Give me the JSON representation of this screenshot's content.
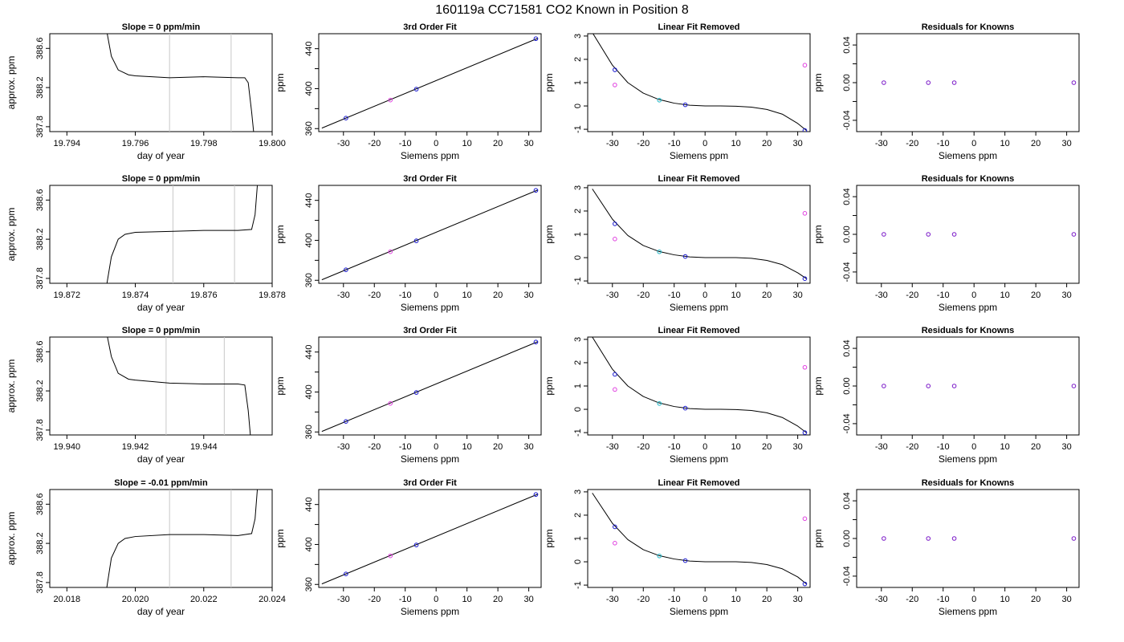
{
  "page_title": "160119a     CC71581    CO2 Known in Position  8",
  "colors": {
    "axis": "#000000",
    "curve": "#000000",
    "vline": "#c8c8c8",
    "point_blue": "#1515d0",
    "point_magenta": "#e040e0",
    "point_cyan": "#20b8c8",
    "point_purple": "#7a18c8"
  },
  "chart_data": [
    {
      "type": "line",
      "title": "Slope =  0  ppm/min",
      "xlabel": "day of year",
      "ylabel": "approx. ppm",
      "xlim": [
        19.7935,
        19.8
      ],
      "ylim": [
        387.75,
        388.75
      ],
      "xticks": [
        "19.794",
        "19.796",
        "19.798",
        "19.800"
      ],
      "xtick_values": [
        19.794,
        19.796,
        19.798,
        19.8
      ],
      "yticks": [
        "387.8",
        "388.2",
        "388.6"
      ],
      "ytick_values": [
        387.8,
        388.2,
        388.6
      ],
      "vlines": [
        19.797,
        19.7988
      ],
      "x": [
        19.7951,
        19.7953,
        19.7955,
        19.7958,
        19.796,
        19.797,
        19.798,
        19.799,
        19.7992,
        19.7993,
        19.7994,
        19.7995
      ],
      "y": [
        388.9,
        388.52,
        388.38,
        388.33,
        388.32,
        388.3,
        388.31,
        388.3,
        388.3,
        388.25,
        387.95,
        387.6
      ]
    },
    {
      "type": "line",
      "title": "Slope =  0  ppm/min",
      "xlabel": "day of year",
      "ylabel": "approx. ppm",
      "xlim": [
        19.8715,
        19.878
      ],
      "ylim": [
        387.75,
        388.75
      ],
      "xticks": [
        "19.872",
        "19.874",
        "19.876",
        "19.878"
      ],
      "xtick_values": [
        19.872,
        19.874,
        19.876,
        19.878
      ],
      "yticks": [
        "387.8",
        "388.2",
        "388.6"
      ],
      "ytick_values": [
        387.8,
        388.2,
        388.6
      ],
      "vlines": [
        19.8751,
        19.8769
      ],
      "x": [
        19.8731,
        19.8733,
        19.8735,
        19.8737,
        19.874,
        19.875,
        19.876,
        19.877,
        19.8774,
        19.8775,
        19.8776
      ],
      "y": [
        387.6,
        388.02,
        388.2,
        388.25,
        388.27,
        388.28,
        388.29,
        388.29,
        388.3,
        388.45,
        388.9
      ]
    },
    {
      "type": "line",
      "title": "Slope =  0  ppm/min",
      "xlabel": "day of year",
      "ylabel": "approx. ppm",
      "xlim": [
        19.9395,
        19.946
      ],
      "ylim": [
        387.75,
        388.75
      ],
      "xticks": [
        "19.940",
        "19.942",
        "19.944"
      ],
      "xtick_values": [
        19.94,
        19.942,
        19.944
      ],
      "yticks": [
        "387.8",
        "388.2",
        "388.6"
      ],
      "ytick_values": [
        387.8,
        388.2,
        388.6
      ],
      "vlines": [
        19.9429,
        19.9446
      ],
      "x": [
        19.9411,
        19.9413,
        19.9415,
        19.9418,
        19.942,
        19.943,
        19.944,
        19.945,
        19.9452,
        19.9453,
        19.9454
      ],
      "y": [
        388.9,
        388.55,
        388.38,
        388.32,
        388.31,
        388.28,
        388.27,
        388.27,
        388.26,
        388.0,
        387.6
      ]
    },
    {
      "type": "line",
      "title": "Slope =  -0.01  ppm/min",
      "xlabel": "day of year",
      "ylabel": "approx. ppm",
      "xlim": [
        20.0175,
        20.024
      ],
      "ylim": [
        387.75,
        388.75
      ],
      "xticks": [
        "20.018",
        "20.020",
        "20.022",
        "20.024"
      ],
      "xtick_values": [
        20.018,
        20.02,
        20.022,
        20.024
      ],
      "yticks": [
        "387.8",
        "388.2",
        "388.6"
      ],
      "ytick_values": [
        387.8,
        388.2,
        388.6
      ],
      "vlines": [
        20.021,
        20.0228
      ],
      "x": [
        20.0191,
        20.0193,
        20.0195,
        20.0197,
        20.02,
        20.021,
        20.022,
        20.023,
        20.0234,
        20.0235,
        20.0236
      ],
      "y": [
        387.6,
        388.05,
        388.2,
        388.25,
        388.27,
        388.29,
        388.29,
        388.28,
        388.3,
        388.45,
        388.9
      ]
    },
    {
      "type": "scatter",
      "title": "3rd Order Fit",
      "xlabel": "Siemens ppm",
      "ylabel": "ppm",
      "xlim": [
        -38,
        34
      ],
      "ylim": [
        357,
        455
      ],
      "xticks": [
        "-30",
        "-20",
        "-10",
        "0",
        "10",
        "20",
        "30"
      ],
      "xtick_values": [
        -30,
        -20,
        -10,
        0,
        10,
        20,
        30
      ],
      "yticks": [
        "360",
        "400",
        "440"
      ],
      "ytick_values": [
        360,
        400,
        440
      ],
      "minor_yticks": [
        380,
        420
      ],
      "line_x": [
        -37,
        33
      ],
      "line_y": [
        360.5,
        450.5
      ],
      "series": [
        {
          "color": "blue",
          "x": [
            -29.2,
            -6.4,
            32.3
          ],
          "y": [
            370.5,
            399.5,
            450
          ]
        },
        {
          "color": "magenta",
          "x": [
            -14.8
          ],
          "y": [
            388.6
          ]
        }
      ]
    },
    {
      "type": "scatter",
      "title": "3rd Order Fit",
      "xlabel": "Siemens ppm",
      "ylabel": "ppm",
      "xlim": [
        -38,
        34
      ],
      "ylim": [
        357,
        455
      ],
      "xticks": [
        "-30",
        "-20",
        "-10",
        "0",
        "10",
        "20",
        "30"
      ],
      "xtick_values": [
        -30,
        -20,
        -10,
        0,
        10,
        20,
        30
      ],
      "yticks": [
        "360",
        "400",
        "440"
      ],
      "ytick_values": [
        360,
        400,
        440
      ],
      "minor_yticks": [
        380,
        420
      ],
      "line_x": [
        -37,
        33
      ],
      "line_y": [
        360.5,
        450.5
      ],
      "series": [
        {
          "color": "blue",
          "x": [
            -29.2,
            -6.4,
            32.3
          ],
          "y": [
            370.5,
            399.5,
            450
          ]
        },
        {
          "color": "magenta",
          "x": [
            -14.8
          ],
          "y": [
            388.6
          ]
        }
      ]
    },
    {
      "type": "scatter",
      "title": "3rd Order Fit",
      "xlabel": "Siemens ppm",
      "ylabel": "ppm",
      "xlim": [
        -38,
        34
      ],
      "ylim": [
        357,
        455
      ],
      "xticks": [
        "-30",
        "-20",
        "-10",
        "0",
        "10",
        "20",
        "30"
      ],
      "xtick_values": [
        -30,
        -20,
        -10,
        0,
        10,
        20,
        30
      ],
      "yticks": [
        "360",
        "400",
        "440"
      ],
      "ytick_values": [
        360,
        400,
        440
      ],
      "minor_yticks": [
        380,
        420
      ],
      "line_x": [
        -37,
        33
      ],
      "line_y": [
        360.5,
        450.5
      ],
      "series": [
        {
          "color": "blue",
          "x": [
            -29.2,
            -6.4,
            32.3
          ],
          "y": [
            370.5,
            399.5,
            450
          ]
        },
        {
          "color": "magenta",
          "x": [
            -14.8
          ],
          "y": [
            388.6
          ]
        }
      ]
    },
    {
      "type": "scatter",
      "title": "3rd Order Fit",
      "xlabel": "Siemens ppm",
      "ylabel": "ppm",
      "xlim": [
        -38,
        34
      ],
      "ylim": [
        357,
        455
      ],
      "xticks": [
        "-30",
        "-20",
        "-10",
        "0",
        "10",
        "20",
        "30"
      ],
      "xtick_values": [
        -30,
        -20,
        -10,
        0,
        10,
        20,
        30
      ],
      "yticks": [
        "360",
        "400",
        "440"
      ],
      "ytick_values": [
        360,
        400,
        440
      ],
      "minor_yticks": [
        380,
        420
      ],
      "line_x": [
        -37,
        33
      ],
      "line_y": [
        360.5,
        450.5
      ],
      "series": [
        {
          "color": "blue",
          "x": [
            -29.2,
            -6.4,
            32.3
          ],
          "y": [
            370.5,
            399.5,
            450
          ]
        },
        {
          "color": "magenta",
          "x": [
            -14.8
          ],
          "y": [
            388.6
          ]
        }
      ]
    },
    {
      "type": "scatter",
      "title": "Linear Fit Removed",
      "xlabel": "Siemens ppm",
      "ylabel": "ppm",
      "xlim": [
        -38,
        34
      ],
      "ylim": [
        -1.1,
        3.1
      ],
      "xticks": [
        "-30",
        "-20",
        "-10",
        "0",
        "10",
        "20",
        "30"
      ],
      "xtick_values": [
        -30,
        -20,
        -10,
        0,
        10,
        20,
        30
      ],
      "yticks": [
        "-1",
        "0",
        "1",
        "2",
        "3"
      ],
      "ytick_values": [
        -1,
        0,
        1,
        2,
        3
      ],
      "curve_x": [
        -36.5,
        -30,
        -25,
        -20,
        -15,
        -10,
        -5,
        0,
        5,
        10,
        15,
        20,
        25,
        30,
        32.8
      ],
      "curve_y": [
        3.15,
        1.75,
        1.0,
        0.55,
        0.28,
        0.12,
        0.03,
        0,
        0,
        -0.01,
        -0.05,
        -0.15,
        -0.35,
        -0.75,
        -1.05
      ],
      "series": [
        {
          "color": "blue",
          "x": [
            -29.2,
            -6.4,
            32.3
          ],
          "y": [
            1.55,
            0.05,
            -1.05
          ]
        },
        {
          "color": "cyan",
          "x": [
            -14.8
          ],
          "y": [
            0.25
          ]
        },
        {
          "color": "magenta",
          "x": [
            -29.2,
            32.3
          ],
          "y": [
            0.9,
            1.75
          ]
        }
      ]
    },
    {
      "type": "scatter",
      "title": "Linear Fit Removed",
      "xlabel": "Siemens ppm",
      "ylabel": "ppm",
      "xlim": [
        -38,
        34
      ],
      "ylim": [
        -1.1,
        3.1
      ],
      "xticks": [
        "-30",
        "-20",
        "-10",
        "0",
        "10",
        "20",
        "30"
      ],
      "xtick_values": [
        -30,
        -20,
        -10,
        0,
        10,
        20,
        30
      ],
      "yticks": [
        "-1",
        "0",
        "1",
        "2",
        "3"
      ],
      "ytick_values": [
        -1,
        0,
        1,
        2,
        3
      ],
      "curve_x": [
        -36.5,
        -30,
        -25,
        -20,
        -15,
        -10,
        -5,
        0,
        5,
        10,
        15,
        20,
        25,
        30,
        32.8
      ],
      "curve_y": [
        2.95,
        1.65,
        0.95,
        0.52,
        0.27,
        0.12,
        0.03,
        0,
        0,
        0,
        -0.03,
        -0.12,
        -0.3,
        -0.65,
        -0.9
      ],
      "series": [
        {
          "color": "blue",
          "x": [
            -29.2,
            -6.4,
            32.3
          ],
          "y": [
            1.45,
            0.05,
            -0.9
          ]
        },
        {
          "color": "cyan",
          "x": [
            -14.8
          ],
          "y": [
            0.25
          ]
        },
        {
          "color": "magenta",
          "x": [
            -29.2,
            32.3
          ],
          "y": [
            0.8,
            1.9
          ]
        }
      ]
    },
    {
      "type": "scatter",
      "title": "Linear Fit Removed",
      "xlabel": "Siemens ppm",
      "ylabel": "ppm",
      "xlim": [
        -38,
        34
      ],
      "ylim": [
        -1.1,
        3.1
      ],
      "xticks": [
        "-30",
        "-20",
        "-10",
        "0",
        "10",
        "20",
        "30"
      ],
      "xtick_values": [
        -30,
        -20,
        -10,
        0,
        10,
        20,
        30
      ],
      "yticks": [
        "-1",
        "0",
        "1",
        "2",
        "3"
      ],
      "ytick_values": [
        -1,
        0,
        1,
        2,
        3
      ],
      "curve_x": [
        -36.5,
        -30,
        -25,
        -20,
        -15,
        -10,
        -5,
        0,
        5,
        10,
        15,
        20,
        25,
        30,
        32.8
      ],
      "curve_y": [
        3.1,
        1.72,
        1.0,
        0.55,
        0.28,
        0.12,
        0.03,
        0,
        0,
        -0.01,
        -0.05,
        -0.15,
        -0.35,
        -0.72,
        -1.0
      ],
      "series": [
        {
          "color": "blue",
          "x": [
            -29.2,
            -6.4,
            32.3
          ],
          "y": [
            1.5,
            0.05,
            -1.0
          ]
        },
        {
          "color": "cyan",
          "x": [
            -14.8
          ],
          "y": [
            0.25
          ]
        },
        {
          "color": "magenta",
          "x": [
            -29.2,
            32.3
          ],
          "y": [
            0.85,
            1.8
          ]
        }
      ]
    },
    {
      "type": "scatter",
      "title": "Linear Fit Removed",
      "xlabel": "Siemens ppm",
      "ylabel": "ppm",
      "xlim": [
        -38,
        34
      ],
      "ylim": [
        -1.1,
        3.1
      ],
      "xticks": [
        "-30",
        "-20",
        "-10",
        "0",
        "10",
        "20",
        "30"
      ],
      "xtick_values": [
        -30,
        -20,
        -10,
        0,
        10,
        20,
        30
      ],
      "yticks": [
        "-1",
        "0",
        "1",
        "2",
        "3"
      ],
      "ytick_values": [
        -1,
        0,
        1,
        2,
        3
      ],
      "curve_x": [
        -36.5,
        -30,
        -25,
        -20,
        -15,
        -10,
        -5,
        0,
        5,
        10,
        15,
        20,
        25,
        30,
        32.8
      ],
      "curve_y": [
        2.95,
        1.65,
        0.95,
        0.52,
        0.27,
        0.12,
        0.03,
        0,
        0,
        0,
        -0.03,
        -0.12,
        -0.3,
        -0.65,
        -0.95
      ],
      "series": [
        {
          "color": "blue",
          "x": [
            -29.2,
            -6.4,
            32.3
          ],
          "y": [
            1.5,
            0.05,
            -0.95
          ]
        },
        {
          "color": "cyan",
          "x": [
            -14.8
          ],
          "y": [
            0.25
          ]
        },
        {
          "color": "magenta",
          "x": [
            -29.2,
            32.3
          ],
          "y": [
            0.8,
            1.85
          ]
        }
      ]
    },
    {
      "type": "scatter",
      "title": "Residuals for Knowns",
      "xlabel": "Siemens ppm",
      "ylabel": "ppm",
      "xlim": [
        -38,
        34
      ],
      "ylim": [
        -0.052,
        0.052
      ],
      "xticks": [
        "-30",
        "-20",
        "-10",
        "0",
        "10",
        "20",
        "30"
      ],
      "xtick_values": [
        -30,
        -20,
        -10,
        0,
        10,
        20,
        30
      ],
      "yticks": [
        "-0.04",
        "0.00",
        "0.04"
      ],
      "ytick_values": [
        -0.04,
        0,
        0.04
      ],
      "minor_yticks": [
        -0.02,
        0.02
      ],
      "series": [
        {
          "color": "purple",
          "x": [
            -29.2,
            -14.8,
            -6.4,
            32.3
          ],
          "y": [
            0,
            0,
            0,
            0
          ]
        }
      ]
    },
    {
      "type": "scatter",
      "title": "Residuals for Knowns",
      "xlabel": "Siemens ppm",
      "ylabel": "ppm",
      "xlim": [
        -38,
        34
      ],
      "ylim": [
        -0.052,
        0.052
      ],
      "xticks": [
        "-30",
        "-20",
        "-10",
        "0",
        "10",
        "20",
        "30"
      ],
      "xtick_values": [
        -30,
        -20,
        -10,
        0,
        10,
        20,
        30
      ],
      "yticks": [
        "-0.04",
        "0.00",
        "0.04"
      ],
      "ytick_values": [
        -0.04,
        0,
        0.04
      ],
      "minor_yticks": [
        -0.02,
        0.02
      ],
      "series": [
        {
          "color": "purple",
          "x": [
            -29.2,
            -14.8,
            -6.4,
            32.3
          ],
          "y": [
            0,
            0,
            0,
            0
          ]
        }
      ]
    },
    {
      "type": "scatter",
      "title": "Residuals for Knowns",
      "xlabel": "Siemens ppm",
      "ylabel": "ppm",
      "xlim": [
        -38,
        34
      ],
      "ylim": [
        -0.052,
        0.052
      ],
      "xticks": [
        "-30",
        "-20",
        "-10",
        "0",
        "10",
        "20",
        "30"
      ],
      "xtick_values": [
        -30,
        -20,
        -10,
        0,
        10,
        20,
        30
      ],
      "yticks": [
        "-0.04",
        "0.00",
        "0.04"
      ],
      "ytick_values": [
        -0.04,
        0,
        0.04
      ],
      "minor_yticks": [
        -0.02,
        0.02
      ],
      "series": [
        {
          "color": "purple",
          "x": [
            -29.2,
            -14.8,
            -6.4,
            32.3
          ],
          "y": [
            0,
            0,
            0,
            0
          ]
        }
      ]
    },
    {
      "type": "scatter",
      "title": "Residuals for Knowns",
      "xlabel": "Siemens ppm",
      "ylabel": "ppm",
      "xlim": [
        -38,
        34
      ],
      "ylim": [
        -0.052,
        0.052
      ],
      "xticks": [
        "-30",
        "-20",
        "-10",
        "0",
        "10",
        "20",
        "30"
      ],
      "xtick_values": [
        -30,
        -20,
        -10,
        0,
        10,
        20,
        30
      ],
      "yticks": [
        "-0.04",
        "0.00",
        "0.04"
      ],
      "ytick_values": [
        -0.04,
        0,
        0.04
      ],
      "minor_yticks": [
        -0.02,
        0.02
      ],
      "series": [
        {
          "color": "purple",
          "x": [
            -29.2,
            -14.8,
            -6.4,
            32.3
          ],
          "y": [
            0,
            0,
            0,
            0
          ]
        }
      ]
    }
  ]
}
